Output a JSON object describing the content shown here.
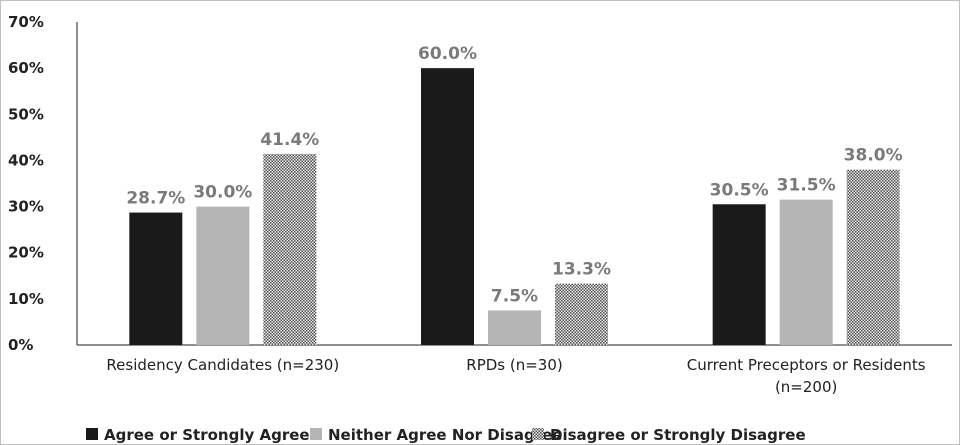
{
  "chart_data": {
    "type": "bar",
    "categories": [
      [
        "Residency Candidates (n=230)"
      ],
      [
        "RPDs (n=30)"
      ],
      [
        "Current Preceptors or Residents",
        "(n=200)"
      ]
    ],
    "series": [
      {
        "name": "Agree or Strongly Agree",
        "values": [
          28.7,
          60.0,
          30.5
        ],
        "labels": [
          "28.7%",
          "60.0%",
          "30.5%"
        ],
        "color": "#1a1a1a",
        "pattern": "solid"
      },
      {
        "name": "Neither Agree Nor Disagree",
        "values": [
          30.0,
          7.5,
          31.5
        ],
        "labels": [
          "30.0%",
          "7.5%",
          "31.5%"
        ],
        "color": "#b5b5b5",
        "pattern": "solid"
      },
      {
        "name": "Disagree or Strongly Disagree",
        "values": [
          41.4,
          13.3,
          38.0
        ],
        "labels": [
          "41.4%",
          "13.3%",
          "38.0%"
        ],
        "color": "#8c8c8c",
        "pattern": "checker"
      }
    ],
    "y_ticks": [
      "0%",
      "10%",
      "20%",
      "30%",
      "40%",
      "50%",
      "60%",
      "70%"
    ],
    "ylim": [
      0,
      70
    ],
    "grid": false,
    "legend_position": "bottom",
    "data_label_color": "#7a7a7a"
  }
}
